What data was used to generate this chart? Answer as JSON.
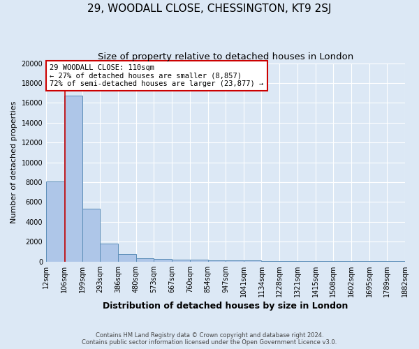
{
  "title": "29, WOODALL CLOSE, CHESSINGTON, KT9 2SJ",
  "subtitle": "Size of property relative to detached houses in London",
  "xlabel": "Distribution of detached houses by size in London",
  "ylabel": "Number of detached properties",
  "bar_values": [
    8100,
    16700,
    5300,
    1800,
    750,
    350,
    250,
    200,
    175,
    150,
    120,
    100,
    80,
    65,
    50,
    40,
    30,
    25,
    20,
    15
  ],
  "bin_edges": [
    12,
    106,
    199,
    293,
    386,
    480,
    573,
    667,
    760,
    854,
    947,
    1041,
    1134,
    1228,
    1321,
    1415,
    1508,
    1602,
    1695,
    1789,
    1882
  ],
  "tick_labels": [
    "12sqm",
    "106sqm",
    "199sqm",
    "293sqm",
    "386sqm",
    "480sqm",
    "573sqm",
    "667sqm",
    "760sqm",
    "854sqm",
    "947sqm",
    "1041sqm",
    "1134sqm",
    "1228sqm",
    "1321sqm",
    "1415sqm",
    "1508sqm",
    "1602sqm",
    "1695sqm",
    "1789sqm",
    "1882sqm"
  ],
  "bar_color": "#aec6e8",
  "bar_edge_color": "#5b8db8",
  "bg_color": "#dce8f5",
  "grid_color": "#ffffff",
  "property_line_x": 110,
  "property_line_color": "#cc0000",
  "annotation_text": "29 WOODALL CLOSE: 110sqm\n← 27% of detached houses are smaller (8,857)\n72% of semi-detached houses are larger (23,877) →",
  "annotation_box_color": "#ffffff",
  "annotation_box_edge": "#cc0000",
  "ylim": [
    0,
    20000
  ],
  "yticks": [
    0,
    2000,
    4000,
    6000,
    8000,
    10000,
    12000,
    14000,
    16000,
    18000,
    20000
  ],
  "footer": "Contains HM Land Registry data © Crown copyright and database right 2024.\nContains public sector information licensed under the Open Government Licence v3.0.",
  "title_fontsize": 11,
  "subtitle_fontsize": 9.5,
  "annotation_fontsize": 7.5,
  "tick_fontsize": 7,
  "ylabel_fontsize": 8,
  "xlabel_fontsize": 9
}
